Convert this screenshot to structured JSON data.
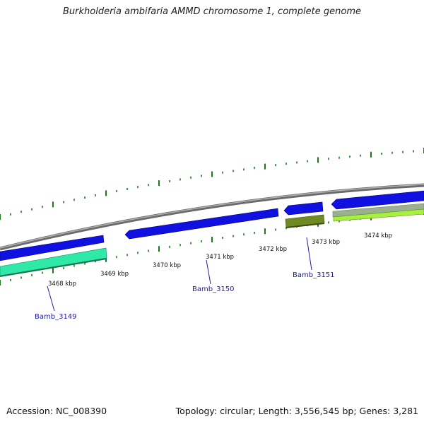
{
  "title": "Burkholderia ambifaria AMMD chromosome 1, complete genome",
  "footer": {
    "accession": "Accession: NC_008390",
    "topology": "Topology: circular; Length: 3,556,545 bp; Genes: 3,281"
  },
  "colors": {
    "backbone": "#8c8c8c",
    "forward_cds": "#1010e0",
    "reverse_cds_teal": "#30e8a8",
    "reverse_cds_olive": "#6e8a20",
    "reverse_cds_lime": "#a8f040",
    "reverse_cds_sage": "#9ab090",
    "tick": "#1a7a1a",
    "label": "#2020a8"
  },
  "tick_labels": [
    "3468 kbp",
    "3469 kbp",
    "3470 kbp",
    "3471 kbp",
    "3472 kbp",
    "3473 kbp",
    "3474 kbp"
  ],
  "gene_labels": [
    "Bamb_3149",
    "Bamb_3150",
    "Bamb_3151"
  ]
}
